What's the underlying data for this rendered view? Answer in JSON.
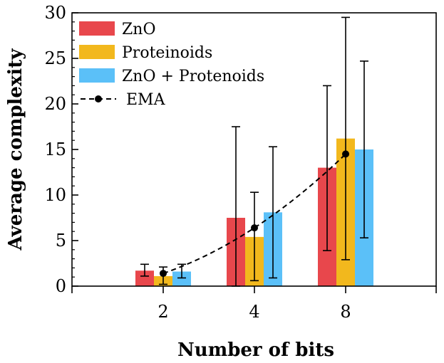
{
  "chart_data": {
    "type": "bar",
    "title": "",
    "xlabel": "Number of bits",
    "ylabel": "Average complexity",
    "categories": [
      "2",
      "4",
      "8"
    ],
    "ylim": [
      0,
      30
    ],
    "yticks": [
      0,
      5,
      10,
      15,
      20,
      25,
      30
    ],
    "series": [
      {
        "name": "ZnO",
        "color": "#e8474c",
        "values": [
          1.7,
          7.5,
          13.0
        ],
        "err_low": [
          1.1,
          0.0,
          3.9
        ],
        "err_high": [
          2.4,
          17.5,
          22.0
        ]
      },
      {
        "name": "Proteinoids",
        "color": "#f2b81d",
        "values": [
          1.1,
          5.4,
          16.2
        ],
        "err_low": [
          0.2,
          0.6,
          2.9
        ],
        "err_high": [
          2.1,
          10.3,
          29.5
        ]
      },
      {
        "name": "ZnO + Protenoids",
        "color": "#5bc0f8",
        "values": [
          1.6,
          8.1,
          15.0
        ],
        "err_low": [
          0.9,
          0.9,
          5.3
        ],
        "err_high": [
          2.4,
          15.3,
          24.7
        ]
      }
    ],
    "line": {
      "name": "EMA",
      "style": "dashed",
      "marker": "circle",
      "color": "#000000",
      "values": [
        1.4,
        6.4,
        14.5
      ]
    },
    "legend": "top-left"
  }
}
